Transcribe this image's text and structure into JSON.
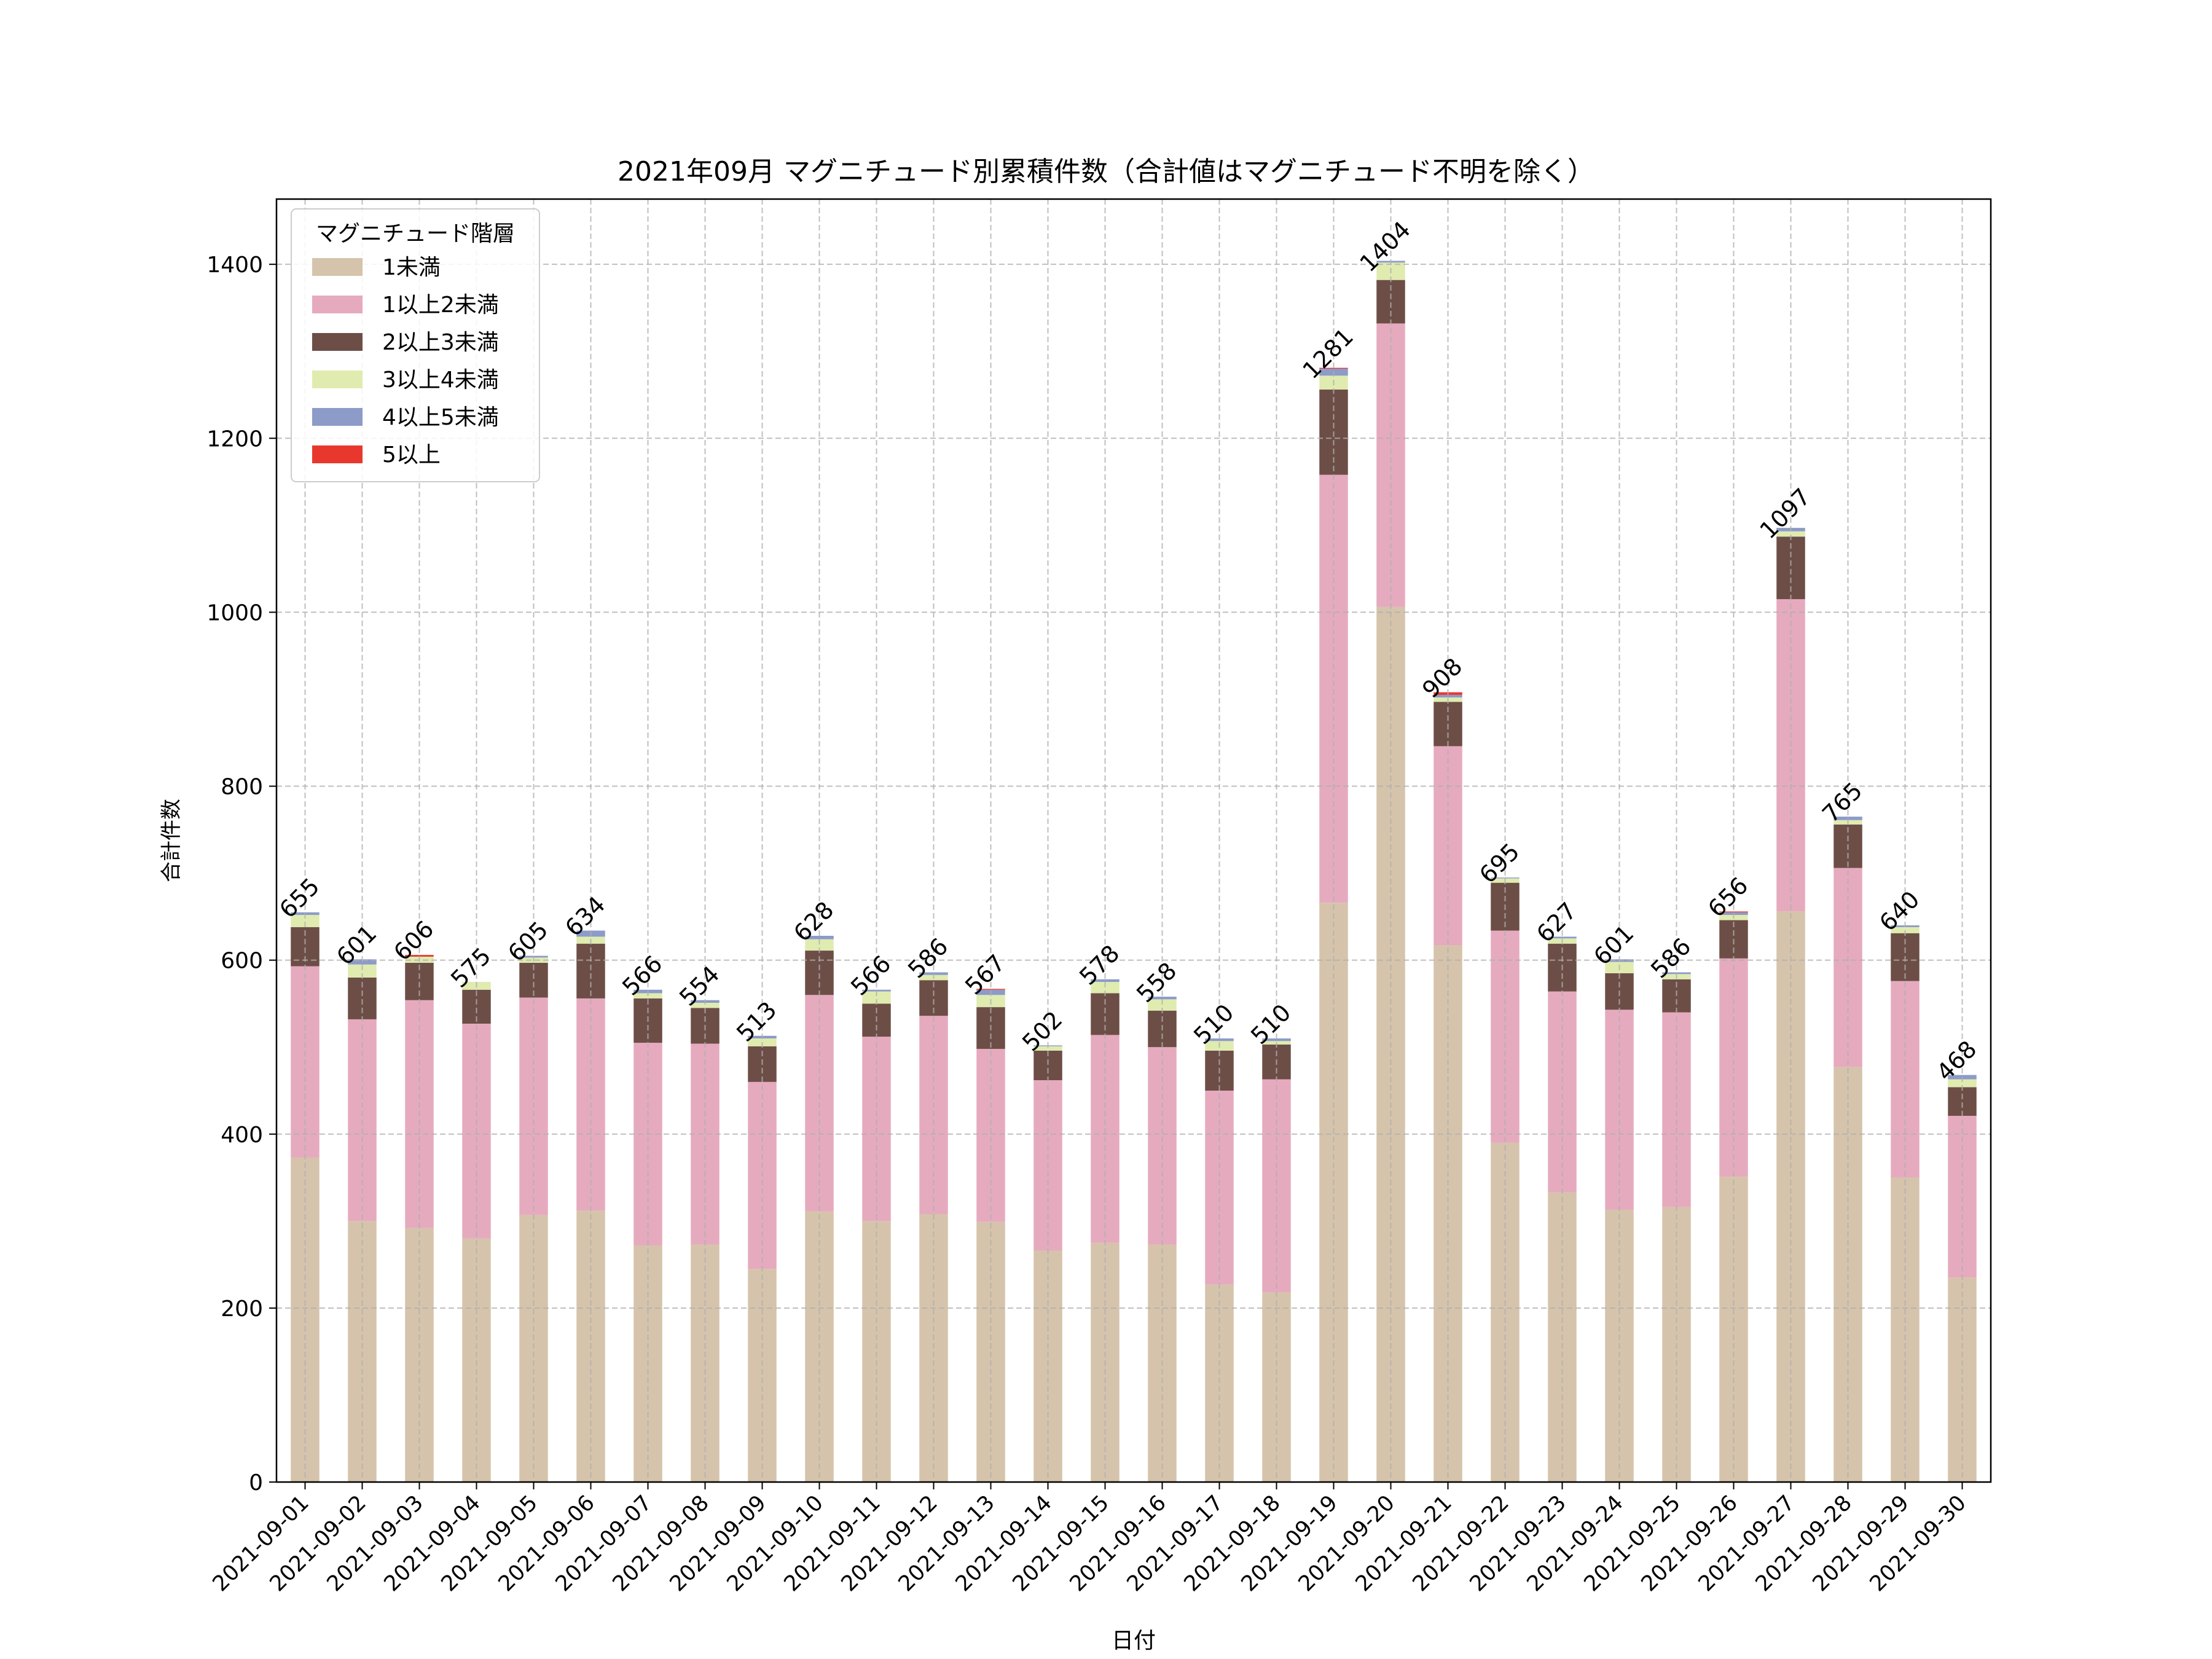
{
  "chart_data": {
    "type": "bar",
    "stacked": true,
    "title": "2021年09月 マグニチュード別累積件数（合計値はマグニチュード不明を除く）",
    "xlabel": "日付",
    "ylabel": "合計件数",
    "ylim": [
      0,
      1475
    ],
    "yticks": [
      0,
      200,
      400,
      600,
      800,
      1000,
      1200,
      1400
    ],
    "grid": true,
    "legend": {
      "title": "マグニチュード階層",
      "placement": "top-left"
    },
    "categories": [
      "2021-09-01",
      "2021-09-02",
      "2021-09-03",
      "2021-09-04",
      "2021-09-05",
      "2021-09-06",
      "2021-09-07",
      "2021-09-08",
      "2021-09-09",
      "2021-09-10",
      "2021-09-11",
      "2021-09-12",
      "2021-09-13",
      "2021-09-14",
      "2021-09-15",
      "2021-09-16",
      "2021-09-17",
      "2021-09-18",
      "2021-09-19",
      "2021-09-20",
      "2021-09-21",
      "2021-09-22",
      "2021-09-23",
      "2021-09-24",
      "2021-09-25",
      "2021-09-26",
      "2021-09-27",
      "2021-09-28",
      "2021-09-29",
      "2021-09-30"
    ],
    "series": [
      {
        "name": "1未満",
        "color": "#d5c4ab",
        "values": [
          373,
          300,
          292,
          280,
          307,
          312,
          272,
          273,
          245,
          311,
          300,
          308,
          299,
          266,
          275,
          273,
          227,
          218,
          666,
          1006,
          617,
          390,
          333,
          313,
          316,
          351,
          656,
          477,
          350,
          235
        ]
      },
      {
        "name": "1以上2未満",
        "color": "#e6aabe",
        "values": [
          220,
          232,
          262,
          247,
          250,
          244,
          233,
          231,
          215,
          249,
          212,
          228,
          199,
          196,
          239,
          227,
          223,
          245,
          492,
          326,
          229,
          244,
          231,
          230,
          224,
          251,
          359,
          229,
          226,
          186
        ]
      },
      {
        "name": "2以上3未満",
        "color": "#6d4e47",
        "values": [
          45,
          48,
          43,
          39,
          40,
          63,
          51,
          41,
          41,
          51,
          38,
          41,
          48,
          34,
          48,
          42,
          46,
          40,
          98,
          50,
          51,
          55,
          55,
          42,
          38,
          44,
          72,
          50,
          55,
          33
        ]
      },
      {
        "name": "3以上4未満",
        "color": "#e0ebb0",
        "values": [
          14,
          15,
          7,
          9,
          6,
          8,
          6,
          6,
          9,
          13,
          14,
          6,
          14,
          5,
          13,
          13,
          11,
          4,
          16,
          20,
          5,
          5,
          6,
          13,
          6,
          6,
          6,
          5,
          7,
          9
        ]
      },
      {
        "name": "4以上5未満",
        "color": "#8c9bc8",
        "values": [
          3,
          6,
          0,
          0,
          2,
          7,
          4,
          3,
          3,
          4,
          2,
          3,
          6,
          1,
          3,
          3,
          3,
          3,
          8,
          2,
          3,
          1,
          2,
          3,
          2,
          3,
          4,
          4,
          2,
          5
        ]
      },
      {
        "name": "5以上",
        "color": "#e8382e",
        "values": [
          0,
          0,
          2,
          0,
          0,
          0,
          0,
          0,
          0,
          0,
          0,
          0,
          1,
          0,
          0,
          0,
          0,
          0,
          1,
          0,
          3,
          0,
          0,
          0,
          0,
          1,
          0,
          0,
          0,
          0
        ]
      }
    ],
    "totals": [
      655,
      601,
      606,
      575,
      605,
      634,
      566,
      554,
      513,
      628,
      566,
      586,
      567,
      502,
      578,
      558,
      510,
      510,
      1281,
      1404,
      908,
      695,
      627,
      601,
      586,
      656,
      1097,
      765,
      640,
      468
    ]
  }
}
